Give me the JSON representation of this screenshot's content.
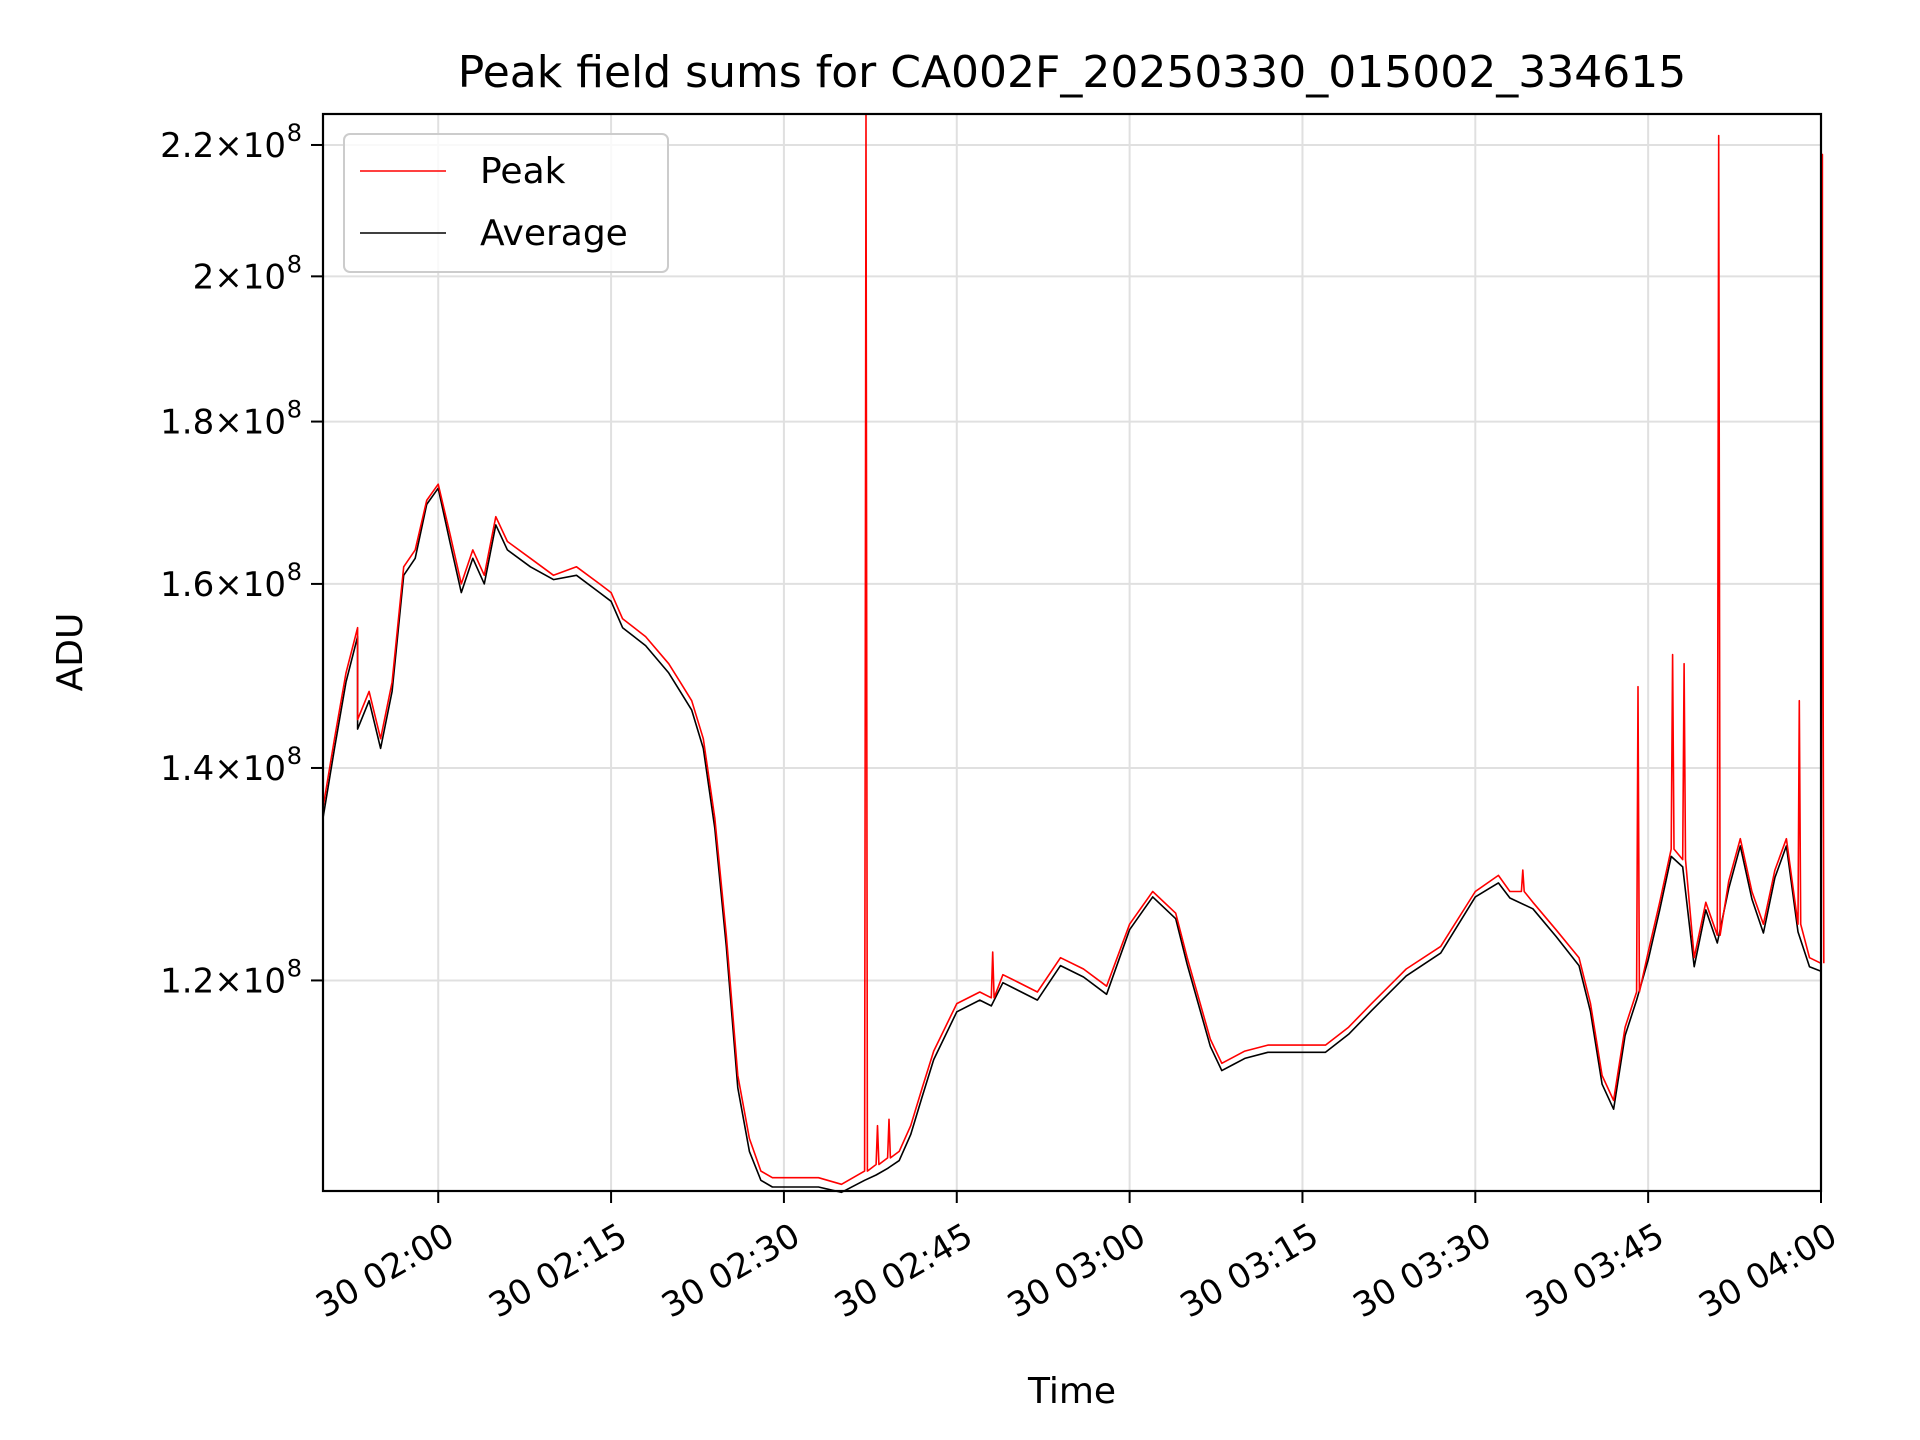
{
  "chart_data": {
    "type": "line",
    "title": "Peak field sums for CA002F_20250330_015002_334615",
    "xlabel": "Time",
    "ylabel": "ADU",
    "y_scale": "log",
    "grid": true,
    "legend_position": "top-left",
    "xlim": [
      "30 01:50",
      "30 04:00"
    ],
    "ylim": [
      103000000,
      225000000
    ],
    "x_ticks": [
      "30 02:00",
      "30 02:15",
      "30 02:30",
      "30 02:45",
      "30 03:00",
      "30 03:15",
      "30 03:30",
      "30 03:45",
      "30 04:00"
    ],
    "y_ticks": [
      {
        "value": 120000000,
        "mantissa": "1.2",
        "exp": "8"
      },
      {
        "value": 140000000,
        "mantissa": "1.4",
        "exp": "8"
      },
      {
        "value": 160000000,
        "mantissa": "1.6",
        "exp": "8"
      },
      {
        "value": 180000000,
        "mantissa": "1.8",
        "exp": "8"
      },
      {
        "value": 200000000,
        "mantissa": "2",
        "exp": "8"
      },
      {
        "value": 220000000,
        "mantissa": "2.2",
        "exp": "8"
      }
    ],
    "x": [
      "30 01:50",
      "30 01:51",
      "30 01:52",
      "30 01:53",
      "30 01:53",
      "30 01:54",
      "30 01:55",
      "30 01:56",
      "30 01:57",
      "30 01:58",
      "30 01:59",
      "30 02:00",
      "30 02:01",
      "30 02:02",
      "30 02:03",
      "30 02:04",
      "30 02:05",
      "30 02:06",
      "30 02:08",
      "30 02:10",
      "30 02:12",
      "30 02:14",
      "30 02:15",
      "30 02:16",
      "30 02:18",
      "30 02:20",
      "30 02:21",
      "30 02:22",
      "30 02:23",
      "30 02:24",
      "30 02:25",
      "30 02:26",
      "30 02:27",
      "30 02:28",
      "30 02:29",
      "30 02:30",
      "30 02:31",
      "30 02:32",
      "30 02:33",
      "30 02:35",
      "30 02:37",
      "30 02:38",
      "30 02:39",
      "30 02:40",
      "30 02:41",
      "30 02:42",
      "30 02:43",
      "30 02:45",
      "30 02:47",
      "30 02:48",
      "30 02:49",
      "30 02:50",
      "30 02:52",
      "30 02:54",
      "30 02:56",
      "30 02:58",
      "30 03:00",
      "30 03:02",
      "30 03:04",
      "30 03:05",
      "30 03:07",
      "30 03:08",
      "30 03:09",
      "30 03:10",
      "30 03:12",
      "30 03:15",
      "30 03:17",
      "30 03:19",
      "30 03:21",
      "30 03:24",
      "30 03:27",
      "30 03:30",
      "30 03:32",
      "30 03:33",
      "30 03:35",
      "30 03:37",
      "30 03:39",
      "30 03:40",
      "30 03:41",
      "30 03:42",
      "30 03:43",
      "30 03:44",
      "30 03:45",
      "30 03:46",
      "30 03:47",
      "30 03:48",
      "30 03:49",
      "30 03:50",
      "30 03:51",
      "30 03:52",
      "30 03:53",
      "30 03:54",
      "30 03:55",
      "30 03:56",
      "30 03:57",
      "30 03:58",
      "30 03:59",
      "30 04:00",
      "30 04:00"
    ],
    "series": [
      {
        "name": "Peak",
        "color": "#ff0000",
        "values": [
          136000000,
          143000000,
          150000000,
          155000000,
          145000000,
          148000000,
          143000000,
          149000000,
          162000000,
          164000000,
          170000000,
          172000000,
          166000000,
          160000000,
          164000000,
          161000000,
          168000000,
          165000000,
          163000000,
          161000000,
          162000000,
          160000000,
          159000000,
          156000000,
          154000000,
          151000000,
          149000000,
          147000000,
          143000000,
          135000000,
          124000000,
          112000000,
          107000000,
          104500000,
          104000000,
          104000000,
          104000000,
          104000000,
          104000000,
          103500000,
          104500000,
          105000000,
          105500000,
          106000000,
          108000000,
          111000000,
          114000000,
          118000000,
          119000000,
          118500000,
          120500000,
          120000000,
          119000000,
          122000000,
          121000000,
          119500000,
          125000000,
          128000000,
          126000000,
          122000000,
          115000000,
          113000000,
          113500000,
          114000000,
          114500000,
          114500000,
          114500000,
          116000000,
          118000000,
          121000000,
          123000000,
          128000000,
          129500000,
          128000000,
          127000000,
          124500000,
          122000000,
          118000000,
          112000000,
          110000000,
          116000000,
          119000000,
          122500000,
          127000000,
          132000000,
          131000000,
          122000000,
          127000000,
          124000000,
          129000000,
          133000000,
          128000000,
          125000000,
          130000000,
          133000000,
          125000000,
          122000000,
          121500000,
          121500000
        ]
      },
      {
        "name": "Average",
        "color": "#000000",
        "values": [
          135000000,
          142000000,
          149000000,
          154000000,
          144000000,
          147000000,
          142000000,
          148000000,
          161000000,
          163000000,
          169500000,
          171500000,
          165000000,
          159000000,
          163000000,
          160000000,
          167000000,
          164000000,
          162000000,
          160500000,
          161000000,
          159000000,
          158000000,
          155000000,
          153000000,
          150000000,
          148000000,
          146000000,
          142000000,
          134000000,
          123000000,
          111000000,
          106000000,
          103800000,
          103300000,
          103300000,
          103300000,
          103300000,
          103300000,
          102900000,
          103800000,
          104200000,
          104700000,
          105300000,
          107300000,
          110300000,
          113300000,
          117300000,
          118300000,
          117800000,
          119800000,
          119300000,
          118300000,
          121300000,
          120300000,
          118800000,
          124500000,
          127500000,
          125500000,
          121400000,
          114400000,
          112400000,
          112900000,
          113400000,
          113900000,
          113900000,
          113900000,
          115400000,
          117400000,
          120400000,
          122400000,
          127500000,
          128800000,
          127400000,
          126400000,
          123900000,
          121300000,
          117300000,
          111300000,
          109300000,
          115300000,
          118300000,
          121800000,
          126300000,
          131300000,
          130300000,
          121200000,
          126300000,
          123300000,
          128300000,
          132300000,
          127300000,
          124200000,
          129300000,
          132300000,
          124300000,
          121200000,
          120800000,
          120800000
        ]
      }
    ],
    "spikes": [
      {
        "series": "Peak",
        "x": "30 02:37",
        "value": 225000000
      },
      {
        "series": "Peak",
        "x": "30 02:38",
        "value": 108000000
      },
      {
        "series": "Peak",
        "x": "30 02:39",
        "value": 108500000
      },
      {
        "series": "Peak",
        "x": "30 02:48",
        "value": 122500000
      },
      {
        "series": "Peak",
        "x": "30 03:34",
        "value": 130000000
      },
      {
        "series": "Peak",
        "x": "30 03:44",
        "value": 148500000
      },
      {
        "series": "Peak",
        "x": "30 03:47",
        "value": 152000000
      },
      {
        "series": "Peak",
        "x": "30 03:48",
        "value": 151000000
      },
      {
        "series": "Peak",
        "x": "30 03:51",
        "value": 221500000
      },
      {
        "series": "Peak",
        "x": "30 03:58",
        "value": 147000000
      },
      {
        "series": "Peak",
        "x": "30 04:00",
        "value": 184000000
      },
      {
        "series": "Peak",
        "x": "30 04:00",
        "value": 218500000
      }
    ]
  }
}
